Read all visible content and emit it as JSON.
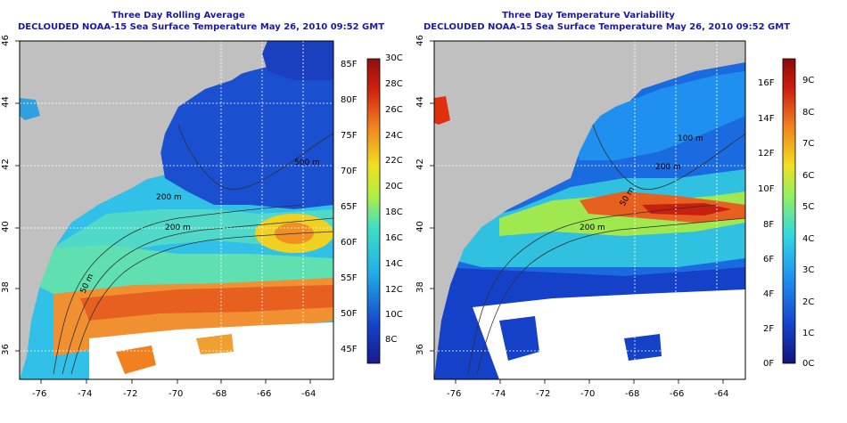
{
  "panels": [
    {
      "title_line1": "Three Day Rolling Average",
      "title_line2": "DECLOUDED NOAA-15 Sea Surface Temperature May 26, 2010 09:52 GMT",
      "x_ticks": [
        "-76",
        "-74",
        "-72",
        "-70",
        "-68",
        "-66",
        "-64"
      ],
      "y_ticks": [
        "36",
        "38",
        "40",
        "42",
        "44",
        "46"
      ],
      "contour_labels": [
        "200 m",
        "50 m",
        "200 m",
        "500 m"
      ],
      "colorbar_f": [
        "85F",
        "80F",
        "75F",
        "70F",
        "65F",
        "60F",
        "55F",
        "50F",
        "45F"
      ],
      "colorbar_c": [
        "30C",
        "28C",
        "26C",
        "24C",
        "22C",
        "20C",
        "18C",
        "16C",
        "14C",
        "12C",
        "10C",
        "8C"
      ]
    },
    {
      "title_line1": "Three Day Temperature Variability",
      "title_line2": "DECLOUDED NOAA-15 Sea Surface Temperature May 26, 2010 09:52 GMT",
      "x_ticks": [
        "-76",
        "-74",
        "-72",
        "-70",
        "-68",
        "-66",
        "-64"
      ],
      "y_ticks": [
        "36",
        "38",
        "40",
        "42",
        "44",
        "46"
      ],
      "contour_labels": [
        "200 m",
        "50 m",
        "200 m",
        "100 m"
      ],
      "colorbar_f": [
        "16F",
        "14F",
        "12F",
        "10F",
        "8F",
        "6F",
        "4F",
        "2F",
        "0F"
      ],
      "colorbar_c": [
        "9C",
        "8C",
        "7C",
        "6C",
        "5C",
        "4C",
        "3C",
        "2C",
        "1C",
        "0C"
      ]
    }
  ],
  "colors": {
    "land": "#c0c0c0",
    "title": "#1a1aa6",
    "cold": "#1030c8",
    "warm": "#d02010"
  }
}
